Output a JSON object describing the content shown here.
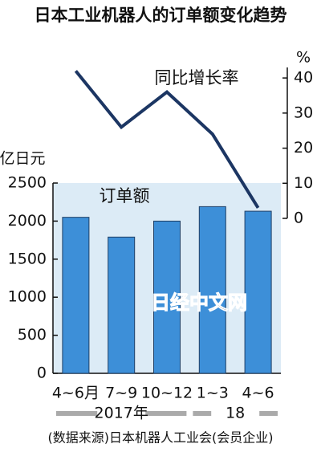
{
  "chart_data": {
    "type": "bar",
    "title": "日本工业机器人的订单额变化趋势",
    "categories": [
      "4~6月",
      "7~9",
      "10~12",
      "1~3",
      "4~6"
    ],
    "x_groups": [
      "2017年",
      "18"
    ],
    "y_unit": "亿日元",
    "y2_unit": "%",
    "series": [
      {
        "name": "订单额",
        "type": "bar",
        "color": "#3d8fd8",
        "values": [
          2050,
          1790,
          2000,
          2190,
          2130
        ]
      },
      {
        "name": "同比增长率",
        "type": "line",
        "axis": "y2",
        "color": "#1c3663",
        "values": [
          42,
          26,
          36,
          24,
          3
        ]
      }
    ],
    "ylim": [
      0,
      2500
    ],
    "yticks": [
      0,
      500,
      1000,
      1500,
      2000,
      2500
    ],
    "y2lim": [
      0,
      43
    ],
    "y2ticks": [
      0,
      10,
      20,
      30,
      40
    ],
    "source": "(数据来源)日本机器人工业会(会员企业)",
    "watermark": "日经中文网"
  }
}
